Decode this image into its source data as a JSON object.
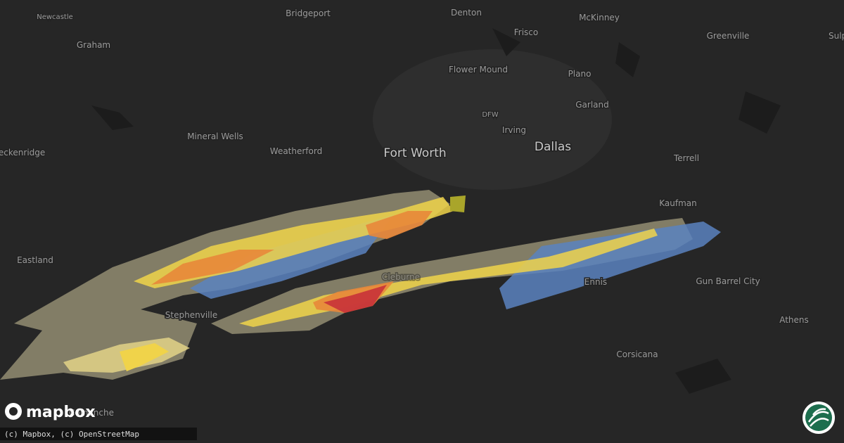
{
  "places": [
    "Newcastle",
    "Graham",
    "Bridgeport",
    "Denton",
    "McKinney",
    "Greenville",
    "Sulphur Springs",
    "Frisco",
    "Flower Mound",
    "Plano",
    "DFW",
    "Garland",
    "Irving",
    "Dallas",
    "Fort Worth",
    "Mineral Wells",
    "Weatherford",
    "Breckenridge",
    "Terrell",
    "Kaufman",
    "Eastland",
    "Stephenville",
    "Ennis",
    "Gun Barrel City",
    "Athens",
    "Corsicana",
    "Cleburne",
    "Comanche"
  ],
  "logo": "mapbox",
  "attribution": "(c) Mapbox, (c) OpenStreetMap"
}
